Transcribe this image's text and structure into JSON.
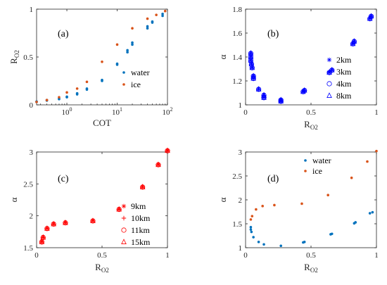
{
  "chart_data": [
    {
      "panel": "(a)",
      "type": "scatter",
      "xlabel": "COT",
      "ylabel": "R",
      "ylabel_sub": "O2",
      "xscale": "log",
      "xlim": [
        0.25,
        100
      ],
      "ylim": [
        0,
        1
      ],
      "xticks": [
        1,
        10,
        100
      ],
      "xtick_labels": [
        "10",
        "10",
        "10"
      ],
      "xtick_exps": [
        "0",
        "1",
        "2"
      ],
      "yticks": [
        0,
        0.5,
        1
      ],
      "ytick_labels": [
        "0",
        "0.5",
        "1"
      ],
      "legend_placement": "right",
      "colors": {
        "water": "#0072BD",
        "ice": "#D95319"
      },
      "series": [
        {
          "name": "water",
          "marker": "dot",
          "color": "#0072BD",
          "points": [
            [
              0.25,
              0.03
            ],
            [
              0.25,
              0.035
            ],
            [
              0.4,
              0.045
            ],
            [
              0.4,
              0.05
            ],
            [
              0.7,
              0.06
            ],
            [
              0.7,
              0.065
            ],
            [
              1,
              0.08
            ],
            [
              1,
              0.085
            ],
            [
              1.6,
              0.11
            ],
            [
              1.6,
              0.12
            ],
            [
              2.5,
              0.16
            ],
            [
              2.5,
              0.17
            ],
            [
              5,
              0.25
            ],
            [
              5,
              0.26
            ],
            [
              10,
              0.42
            ],
            [
              10,
              0.43
            ],
            [
              16,
              0.55
            ],
            [
              16,
              0.57
            ],
            [
              20,
              0.63
            ],
            [
              20,
              0.65
            ],
            [
              40,
              0.8
            ],
            [
              40,
              0.82
            ],
            [
              50,
              0.86
            ],
            [
              50,
              0.87
            ],
            [
              80,
              0.93
            ],
            [
              80,
              0.95
            ]
          ]
        },
        {
          "name": "ice",
          "marker": "dot",
          "color": "#D95319",
          "points": [
            [
              0.25,
              0.03
            ],
            [
              0.4,
              0.05
            ],
            [
              0.7,
              0.08
            ],
            [
              1,
              0.13
            ],
            [
              1.6,
              0.17
            ],
            [
              2.5,
              0.24
            ],
            [
              5,
              0.45
            ],
            [
              10,
              0.63
            ],
            [
              20,
              0.8
            ],
            [
              40,
              0.9
            ],
            [
              60,
              0.94
            ],
            [
              90,
              0.98
            ]
          ]
        }
      ]
    },
    {
      "panel": "(b)",
      "type": "scatter",
      "xlabel": "R",
      "xlabel_sub": "O2",
      "ylabel": "α",
      "xlim": [
        0,
        1
      ],
      "ylim": [
        1,
        1.8
      ],
      "xticks": [
        0,
        0.5,
        1
      ],
      "xtick_labels": [
        "0",
        "0.5",
        "1"
      ],
      "yticks": [
        1,
        1.2,
        1.4,
        1.6,
        1.8
      ],
      "ytick_labels": [
        "1",
        "1.2",
        "1.4",
        "1.6",
        "1.8"
      ],
      "legend_placement": "right",
      "marker_color": "#0000FF",
      "series": [
        {
          "name": "2km",
          "marker": "asterisk"
        },
        {
          "name": "3km",
          "marker": "plus"
        },
        {
          "name": "4km",
          "marker": "circle"
        },
        {
          "name": "8km",
          "marker": "triangle"
        }
      ],
      "points": [
        [
          0.04,
          1.43
        ],
        [
          0.04,
          1.4
        ],
        [
          0.04,
          1.37
        ],
        [
          0.045,
          1.34
        ],
        [
          0.05,
          1.31
        ],
        [
          0.06,
          1.24
        ],
        [
          0.06,
          1.22
        ],
        [
          0.1,
          1.13
        ],
        [
          0.14,
          1.08
        ],
        [
          0.14,
          1.06
        ],
        [
          0.27,
          1.04
        ],
        [
          0.27,
          1.03
        ],
        [
          0.44,
          1.11
        ],
        [
          0.45,
          1.12
        ],
        [
          0.64,
          1.27
        ],
        [
          0.66,
          1.29
        ],
        [
          0.82,
          1.51
        ],
        [
          0.83,
          1.53
        ],
        [
          0.95,
          1.72
        ],
        [
          0.96,
          1.74
        ]
      ]
    },
    {
      "panel": "(c)",
      "type": "scatter",
      "xlabel": "R",
      "xlabel_sub": "O2",
      "ylabel": "α",
      "xlim": [
        0,
        1
      ],
      "ylim": [
        1.5,
        3
      ],
      "xticks": [
        0,
        0.5,
        1
      ],
      "xtick_labels": [
        "0",
        "0.5",
        "1"
      ],
      "yticks": [
        1.5,
        2,
        2.5,
        3
      ],
      "ytick_labels": [
        "1.5",
        "2",
        "2.5",
        "3"
      ],
      "legend_placement": "right",
      "marker_color": "#FF0000",
      "series": [
        {
          "name": "9km",
          "marker": "asterisk"
        },
        {
          "name": "10km",
          "marker": "plus"
        },
        {
          "name": "11km",
          "marker": "circle"
        },
        {
          "name": "15km",
          "marker": "triangle"
        }
      ],
      "points": [
        [
          0.04,
          1.59
        ],
        [
          0.05,
          1.66
        ],
        [
          0.08,
          1.8
        ],
        [
          0.13,
          1.87
        ],
        [
          0.22,
          1.89
        ],
        [
          0.43,
          1.92
        ],
        [
          0.63,
          2.1
        ],
        [
          0.81,
          2.45
        ],
        [
          0.93,
          2.8
        ],
        [
          1.0,
          3.02
        ]
      ]
    },
    {
      "panel": "(d)",
      "type": "scatter",
      "xlabel": "R",
      "xlabel_sub": "O2",
      "ylabel": "α",
      "xlim": [
        0,
        1
      ],
      "ylim": [
        1,
        3
      ],
      "xticks": [
        0,
        0.5,
        1
      ],
      "xtick_labels": [
        "0",
        "0.5",
        "1"
      ],
      "yticks": [
        1,
        1.5,
        2,
        2.5,
        3
      ],
      "ytick_labels": [
        "1",
        "1.5",
        "2",
        "2.5",
        "3"
      ],
      "legend_placement": "top",
      "series": [
        {
          "name": "water",
          "marker": "dot",
          "color": "#0072BD",
          "points": [
            [
              0.04,
              1.43
            ],
            [
              0.04,
              1.38
            ],
            [
              0.045,
              1.33
            ],
            [
              0.06,
              1.22
            ],
            [
              0.1,
              1.12
            ],
            [
              0.14,
              1.07
            ],
            [
              0.27,
              1.04
            ],
            [
              0.44,
              1.11
            ],
            [
              0.45,
              1.12
            ],
            [
              0.65,
              1.28
            ],
            [
              0.66,
              1.29
            ],
            [
              0.83,
              1.51
            ],
            [
              0.84,
              1.53
            ],
            [
              0.95,
              1.72
            ],
            [
              0.97,
              1.74
            ]
          ]
        },
        {
          "name": "ice",
          "marker": "dot",
          "color": "#D95319",
          "points": [
            [
              0.04,
              1.59
            ],
            [
              0.05,
              1.66
            ],
            [
              0.08,
              1.8
            ],
            [
              0.13,
              1.87
            ],
            [
              0.22,
              1.89
            ],
            [
              0.43,
              1.92
            ],
            [
              0.63,
              2.1
            ],
            [
              0.81,
              2.46
            ],
            [
              0.93,
              2.8
            ],
            [
              1.0,
              3.02
            ]
          ]
        }
      ]
    }
  ]
}
